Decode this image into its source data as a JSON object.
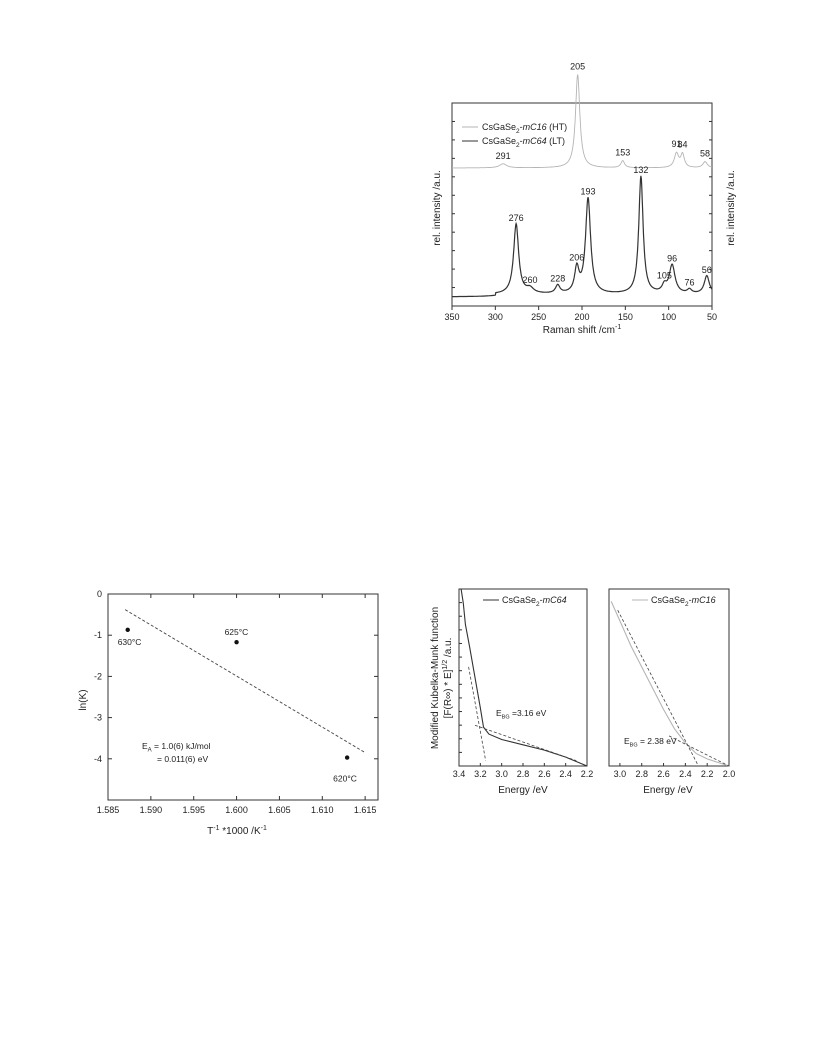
{
  "raman": {
    "chart_data": {
      "type": "line",
      "xlabel": "Raman shift /cm",
      "xlabel_sup": "-1",
      "ylabel": "rel. intensity /a.u.",
      "ylabel_right": "rel. intensity /a.u.",
      "xlim": [
        350,
        50
      ],
      "xticks": [
        350,
        300,
        250,
        200,
        150,
        100,
        50
      ],
      "legend_position": "top-left",
      "series": [
        {
          "name_prefix": "CsGaSe",
          "name_sub": "2",
          "name_mid": "-",
          "name_phase": "mC16",
          "name_suffix": " (HT)",
          "color": "#b5b5b5",
          "baseline": 0.68,
          "peaks": [
            {
              "x": 291,
              "h": 0.02,
              "w": 5,
              "label": "291"
            },
            {
              "x": 205,
              "h": 0.46,
              "w": 3,
              "label": "205"
            },
            {
              "x": 153,
              "h": 0.035,
              "w": 2.5,
              "label": "153"
            },
            {
              "x": 91,
              "h": 0.07,
              "w": 3,
              "label": "91"
            },
            {
              "x": 84,
              "h": 0.065,
              "w": 2.5,
              "label": "84"
            },
            {
              "x": 58,
              "h": 0.03,
              "w": 3,
              "label": "58"
            }
          ]
        },
        {
          "name_prefix": "CsGaSe",
          "name_sub": "2",
          "name_mid": "-",
          "name_phase": "mC64",
          "name_suffix": " (LT)",
          "color": "#333333",
          "baseline": 0.045,
          "peaks": [
            {
              "x": 276,
              "h": 0.345,
              "w": 3.5,
              "label": "276"
            },
            {
              "x": 260,
              "h": 0.025,
              "w": 5,
              "label": "260"
            },
            {
              "x": 228,
              "h": 0.04,
              "w": 3,
              "label": "228"
            },
            {
              "x": 206,
              "h": 0.12,
              "w": 3,
              "label": "206"
            },
            {
              "x": 193,
              "h": 0.47,
              "w": 3.5,
              "label": "193"
            },
            {
              "x": 132,
              "h": 0.58,
              "w": 3,
              "label": "132"
            },
            {
              "x": 105,
              "h": 0.035,
              "w": 3,
              "label": "105"
            },
            {
              "x": 96,
              "h": 0.14,
              "w": 4,
              "label": "96"
            },
            {
              "x": 76,
              "h": 0.02,
              "w": 3,
              "label": "76"
            },
            {
              "x": 56,
              "h": 0.09,
              "w": 3.5,
              "label": "56"
            }
          ]
        }
      ]
    }
  },
  "arrhenius": {
    "chart_data": {
      "type": "scatter",
      "xlabel": "T",
      "xlabel_sup": "-1",
      "xlabel_rest": " *1000 /K",
      "xlabel_sup2": "-1",
      "ylabel": "ln(K)",
      "xlim": [
        1.585,
        1.6165
      ],
      "ylim": [
        -5,
        0
      ],
      "xticks": [
        "1.585",
        "1.590",
        "1.595",
        "1.600",
        "1.605",
        "1.610",
        "1.615"
      ],
      "yticks": [
        "0",
        "-1",
        "-2",
        "-3",
        "-4"
      ],
      "points": [
        {
          "x": 1.5873,
          "y": -0.87,
          "label": "630°C"
        },
        {
          "x": 1.6,
          "y": -1.17,
          "label": "625°C"
        },
        {
          "x": 1.6129,
          "y": -3.97,
          "label": "620°C"
        }
      ],
      "fit_line": {
        "x": [
          1.587,
          1.615
        ],
        "y": [
          -0.38,
          -3.85
        ]
      },
      "annotation_line1_pre": "E",
      "annotation_line1_sub": "A",
      "annotation_line1_post": " = 1.0(6) kJ/mol",
      "annotation_line2": "= 0.011(6) eV"
    }
  },
  "km_shared_ylabel_line1": "Modified Kubelka-Munk function",
  "km_shared_ylabel_line2": "[F(R∞) * E]",
  "km_shared_ylabel_sup": "1/2",
  "km_shared_ylabel_unit": " /a.u.",
  "km_left": {
    "chart_data": {
      "type": "line",
      "xlabel": "Energy /eV",
      "xlim": [
        3.4,
        2.2
      ],
      "xticks": [
        "3.4",
        "3.2",
        "3.0",
        "2.8",
        "2.6",
        "2.4",
        "2.2"
      ],
      "legend_position": "top-right",
      "legend_prefix": "CsGaSe",
      "legend_sub": "2",
      "legend_mid": "-",
      "legend_phase": "mC64",
      "color": "#333333",
      "curve": [
        [
          3.38,
          1.0
        ],
        [
          3.36,
          0.92
        ],
        [
          3.34,
          0.8
        ],
        [
          3.3,
          0.67
        ],
        [
          3.25,
          0.5
        ],
        [
          3.2,
          0.33
        ],
        [
          3.17,
          0.22
        ],
        [
          3.12,
          0.18
        ],
        [
          3.0,
          0.15
        ],
        [
          2.8,
          0.12
        ],
        [
          2.6,
          0.09
        ],
        [
          2.4,
          0.05
        ],
        [
          2.2,
          0.0
        ]
      ],
      "tangent": {
        "x": [
          3.31,
          3.15
        ],
        "y": [
          0.56,
          0.03
        ]
      },
      "baseline_fit": {
        "x": [
          3.25,
          2.3
        ],
        "y": [
          0.23,
          0.03
        ]
      },
      "gap_pre": "E",
      "gap_sub": "BG",
      "gap_post": " =3.16 eV"
    }
  },
  "km_right": {
    "chart_data": {
      "type": "line",
      "xlabel": "Energy /eV",
      "xlim": [
        3.1,
        2.0
      ],
      "xticks": [
        "3.0",
        "2.8",
        "2.6",
        "2.4",
        "2.2",
        "2.0"
      ],
      "legend_position": "top-right",
      "legend_prefix": "CsGaSe",
      "legend_sub": "2",
      "legend_mid": "-",
      "legend_phase": "mC16",
      "color": "#b5b5b5",
      "curve": [
        [
          3.08,
          0.93
        ],
        [
          3.0,
          0.82
        ],
        [
          2.9,
          0.68
        ],
        [
          2.8,
          0.56
        ],
        [
          2.7,
          0.44
        ],
        [
          2.6,
          0.32
        ],
        [
          2.5,
          0.21
        ],
        [
          2.4,
          0.13
        ],
        [
          2.3,
          0.07
        ],
        [
          2.2,
          0.04
        ],
        [
          2.1,
          0.02
        ],
        [
          2.0,
          0.0
        ]
      ],
      "tangent": {
        "x": [
          3.02,
          2.28
        ],
        "y": [
          0.88,
          0.0
        ]
      },
      "baseline_fit": {
        "x": [
          2.55,
          2.0
        ],
        "y": [
          0.17,
          0.0
        ]
      },
      "gap_pre": "E",
      "gap_sub": "BG",
      "gap_post": " = 2.38 eV"
    }
  }
}
